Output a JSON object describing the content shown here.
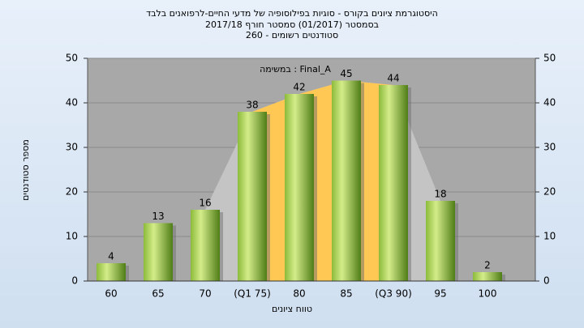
{
  "chart_data": {
    "type": "bar",
    "title": "היסטוגרמת ציונים בקורס - סוגיות בפילוסופיה של מדעי החיים-לרפואנים בלבד",
    "subtitle": "בסמסטר  (01/2017)  סמסטר חורף  2017/18",
    "subtitle2": "סטודנטים רשומים - 260",
    "annotation": "במשימה : Final_A",
    "ylabel": "מספר סטודנטים",
    "xlabel": "טווח ציונים",
    "categories": [
      "60",
      "65",
      "70",
      "(Q1 75)",
      "80",
      "85",
      "(Q3 90)",
      "95",
      "100"
    ],
    "values": [
      4,
      13,
      16,
      38,
      42,
      45,
      44,
      18,
      2
    ],
    "ylim": [
      0,
      50
    ],
    "yticks": [
      0,
      10,
      20,
      30,
      40,
      50
    ],
    "y2lim": [
      0,
      50
    ],
    "y2ticks": [
      0,
      10,
      20,
      30,
      40,
      50
    ],
    "grid": true
  }
}
